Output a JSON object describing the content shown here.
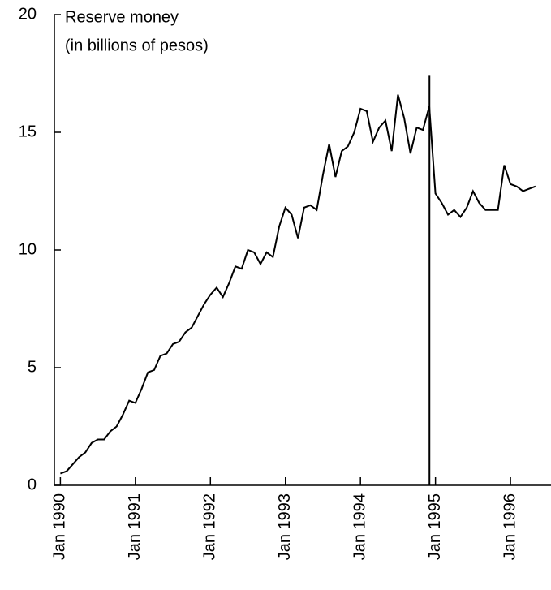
{
  "chart_data": {
    "type": "line",
    "title": "Reserve money",
    "subtitle": "(in billions of pesos)",
    "x": [
      1990,
      1990.083,
      1990.167,
      1990.25,
      1990.333,
      1990.417,
      1990.5,
      1990.583,
      1990.667,
      1990.75,
      1990.833,
      1990.917,
      1991,
      1991.083,
      1991.167,
      1991.25,
      1991.333,
      1991.417,
      1991.5,
      1991.583,
      1991.667,
      1991.75,
      1991.833,
      1991.917,
      1992,
      1992.083,
      1992.167,
      1992.25,
      1992.333,
      1992.417,
      1992.5,
      1992.583,
      1992.667,
      1992.75,
      1992.833,
      1992.917,
      1993,
      1993.083,
      1993.167,
      1993.25,
      1993.333,
      1993.417,
      1993.5,
      1993.583,
      1993.667,
      1993.75,
      1993.833,
      1993.917,
      1994,
      1994.083,
      1994.167,
      1994.25,
      1994.333,
      1994.417,
      1994.5,
      1994.583,
      1994.667,
      1994.75,
      1994.833,
      1994.917,
      1995,
      1995.083,
      1995.167,
      1995.25,
      1995.333,
      1995.417,
      1995.5,
      1995.583,
      1995.667,
      1995.75,
      1995.833,
      1995.917,
      1996,
      1996.083,
      1996.167,
      1996.25,
      1996.333
    ],
    "series": [
      {
        "color": "#000000",
        "values": [
          0.5,
          0.6,
          0.9,
          1.2,
          1.4,
          1.8,
          1.95,
          1.95,
          2.3,
          2.5,
          3.0,
          3.6,
          3.5,
          4.1,
          4.8,
          4.9,
          5.5,
          5.6,
          6.0,
          6.1,
          6.5,
          6.7,
          7.2,
          7.7,
          8.1,
          8.4,
          8.0,
          8.6,
          9.3,
          9.2,
          10.0,
          9.9,
          9.4,
          9.9,
          9.7,
          11.0,
          11.8,
          11.5,
          10.5,
          11.8,
          11.9,
          11.7,
          13.2,
          14.5,
          13.1,
          14.2,
          14.4,
          15.0,
          16.0,
          15.9,
          14.6,
          15.2,
          15.5,
          14.2,
          16.6,
          15.6,
          14.1,
          15.2,
          15.1,
          16.1,
          12.4,
          12.0,
          11.5,
          11.7,
          11.4,
          11.8,
          12.5,
          12.0,
          11.7,
          11.7,
          11.7,
          13.6,
          12.8,
          12.7,
          12.5,
          12.6,
          12.7
        ]
      }
    ],
    "vline": {
      "x": 1994.92,
      "top": 17.4
    },
    "xlim": [
      1989.92,
      1996.54
    ],
    "xticks": [
      {
        "value": 1990,
        "label": "Jan 1990"
      },
      {
        "value": 1991,
        "label": "Jan 1991"
      },
      {
        "value": 1992,
        "label": "Jan 1992"
      },
      {
        "value": 1993,
        "label": "Jan 1993"
      },
      {
        "value": 1994,
        "label": "Jan 1994"
      },
      {
        "value": 1995,
        "label": "Jan 1995"
      },
      {
        "value": 1996,
        "label": "Jan 1996"
      }
    ],
    "ylim": [
      0,
      20
    ],
    "yticks": [
      0,
      5,
      10,
      15,
      20
    ]
  }
}
